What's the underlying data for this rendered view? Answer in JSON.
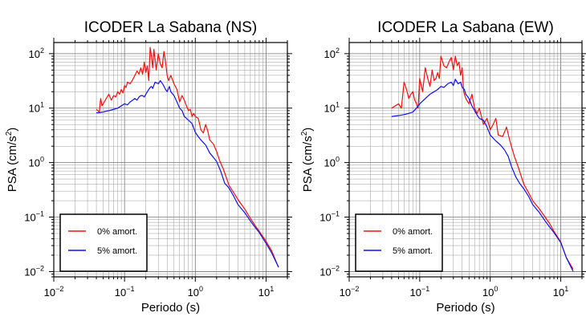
{
  "chart_data": [
    {
      "type": "line",
      "title": "ICODER La Sabana (NS)",
      "xlabel": "Periodo (s)",
      "ylabel_main": "PSA (cm/s",
      "ylabel_sup": "2",
      "ylabel_end": ")",
      "x_scale": "log",
      "y_scale": "log",
      "xlim": [
        0.01,
        20
      ],
      "ylim": [
        0.008,
        160
      ],
      "x_ticks": [
        {
          "value": 0.01,
          "base": "10",
          "exp": "−2"
        },
        {
          "value": 0.1,
          "base": "10",
          "exp": "−1"
        },
        {
          "value": 1,
          "base": "10",
          "exp": "0"
        },
        {
          "value": 10,
          "base": "10",
          "exp": "1"
        }
      ],
      "y_ticks": [
        {
          "value": 0.01,
          "base": "10",
          "exp": "−2"
        },
        {
          "value": 0.1,
          "base": "10",
          "exp": "−1"
        },
        {
          "value": 1,
          "base": "10",
          "exp": "0"
        },
        {
          "value": 10,
          "base": "10",
          "exp": "1"
        },
        {
          "value": 100,
          "base": "10",
          "exp": "2"
        }
      ],
      "grid": true,
      "legend_position": "bottom-left",
      "series": [
        {
          "name": "0% amort.",
          "color": "#ee1111",
          "x": [
            0.04,
            0.044,
            0.046,
            0.048,
            0.05,
            0.055,
            0.06,
            0.065,
            0.07,
            0.075,
            0.08,
            0.085,
            0.09,
            0.095,
            0.1,
            0.105,
            0.11,
            0.12,
            0.13,
            0.14,
            0.15,
            0.16,
            0.17,
            0.18,
            0.19,
            0.2,
            0.21,
            0.22,
            0.23,
            0.24,
            0.25,
            0.26,
            0.28,
            0.3,
            0.32,
            0.34,
            0.36,
            0.38,
            0.4,
            0.42,
            0.45,
            0.5,
            0.55,
            0.6,
            0.65,
            0.7,
            0.75,
            0.8,
            0.85,
            0.9,
            0.95,
            1.0,
            1.1,
            1.2,
            1.3,
            1.4,
            1.5,
            1.6,
            1.8,
            2.0,
            2.2,
            2.5,
            3.0,
            3.5,
            4.0,
            5.0,
            6.0,
            7.0,
            8.0,
            10.0,
            12.0,
            15.0
          ],
          "y": [
            9.5,
            8.5,
            15,
            11,
            12,
            15,
            18,
            14,
            17,
            16,
            20,
            18,
            22,
            19,
            26,
            24,
            30,
            28,
            33,
            40,
            48,
            42,
            55,
            42,
            70,
            45,
            60,
            32,
            130,
            90,
            55,
            120,
            50,
            100,
            65,
            55,
            110,
            70,
            40,
            32,
            40,
            28,
            22,
            13,
            17,
            14,
            11,
            9,
            9.5,
            7,
            8,
            7,
            6.5,
            4,
            3.5,
            5,
            3.8,
            2.6,
            2.2,
            1.6,
            1.1,
            0.75,
            0.38,
            0.28,
            0.21,
            0.14,
            0.095,
            0.07,
            0.055,
            0.036,
            0.024,
            0.012
          ]
        },
        {
          "name": "5% amort.",
          "color": "#1111ee",
          "x": [
            0.04,
            0.045,
            0.05,
            0.055,
            0.06,
            0.07,
            0.08,
            0.09,
            0.1,
            0.11,
            0.12,
            0.13,
            0.14,
            0.15,
            0.16,
            0.17,
            0.18,
            0.19,
            0.2,
            0.21,
            0.22,
            0.23,
            0.24,
            0.25,
            0.27,
            0.3,
            0.32,
            0.35,
            0.38,
            0.4,
            0.43,
            0.45,
            0.5,
            0.55,
            0.6,
            0.65,
            0.7,
            0.75,
            0.8,
            0.9,
            1.0,
            1.1,
            1.2,
            1.4,
            1.6,
            1.8,
            2.0,
            2.3,
            2.6,
            3.0,
            3.5,
            4.0,
            5.0,
            6.0,
            7.0,
            8.0,
            10.0,
            12.0,
            15.0
          ],
          "y": [
            8.2,
            8.3,
            8.5,
            8.8,
            9,
            9.5,
            10,
            11,
            12,
            11.5,
            13,
            14,
            15,
            14,
            16,
            17,
            17,
            16,
            18,
            20,
            22,
            24,
            25,
            23,
            30,
            28,
            32,
            27,
            22,
            20,
            25,
            20,
            17,
            13,
            10,
            9,
            7,
            6.5,
            6,
            5.2,
            3.6,
            3,
            2.6,
            2.1,
            1.5,
            1.25,
            1.05,
            0.68,
            0.42,
            0.34,
            0.24,
            0.17,
            0.12,
            0.085,
            0.065,
            0.052,
            0.033,
            0.022,
            0.012
          ]
        }
      ]
    },
    {
      "type": "line",
      "title": "ICODER La Sabana (EW)",
      "xlabel": "Periodo (s)",
      "ylabel_main": "PSA (cm/s",
      "ylabel_sup": "2",
      "ylabel_end": ")",
      "x_scale": "log",
      "y_scale": "log",
      "xlim": [
        0.01,
        20
      ],
      "ylim": [
        0.008,
        160
      ],
      "x_ticks": [
        {
          "value": 0.01,
          "base": "10",
          "exp": "−2"
        },
        {
          "value": 0.1,
          "base": "10",
          "exp": "−1"
        },
        {
          "value": 1,
          "base": "10",
          "exp": "0"
        },
        {
          "value": 10,
          "base": "10",
          "exp": "1"
        }
      ],
      "y_ticks": [
        {
          "value": 0.01,
          "base": "10",
          "exp": "−2"
        },
        {
          "value": 0.1,
          "base": "10",
          "exp": "−1"
        },
        {
          "value": 1,
          "base": "10",
          "exp": "0"
        },
        {
          "value": 10,
          "base": "10",
          "exp": "1"
        },
        {
          "value": 100,
          "base": "10",
          "exp": "2"
        }
      ],
      "grid": true,
      "legend_position": "bottom-left",
      "series": [
        {
          "name": "0% amort.",
          "color": "#ee1111",
          "x": [
            0.04,
            0.045,
            0.05,
            0.055,
            0.06,
            0.065,
            0.07,
            0.075,
            0.08,
            0.085,
            0.09,
            0.095,
            0.1,
            0.11,
            0.12,
            0.13,
            0.14,
            0.15,
            0.16,
            0.17,
            0.18,
            0.19,
            0.2,
            0.22,
            0.24,
            0.26,
            0.28,
            0.3,
            0.32,
            0.34,
            0.36,
            0.38,
            0.4,
            0.42,
            0.45,
            0.5,
            0.55,
            0.6,
            0.65,
            0.7,
            0.75,
            0.8,
            0.9,
            1.0,
            1.1,
            1.2,
            1.3,
            1.5,
            1.7,
            1.9,
            2.2,
            2.5,
            3.0,
            3.5,
            4.0,
            5.0,
            6.0,
            7.0,
            8.0,
            10.0,
            12.0,
            15.0
          ],
          "y": [
            10,
            11,
            12,
            10,
            30,
            22,
            15,
            18,
            20,
            14,
            12,
            10,
            35,
            20,
            55,
            35,
            25,
            50,
            32,
            35,
            45,
            35,
            90,
            60,
            55,
            70,
            85,
            50,
            90,
            60,
            70,
            40,
            55,
            20,
            15,
            12,
            18,
            10,
            8,
            10,
            7,
            5,
            6.5,
            4,
            5,
            6.5,
            3.2,
            3,
            4.5,
            2.5,
            1.3,
            0.82,
            0.4,
            0.28,
            0.2,
            0.14,
            0.1,
            0.075,
            0.055,
            0.035,
            0.018,
            0.011
          ]
        },
        {
          "name": "5% amort.",
          "color": "#1111ee",
          "x": [
            0.04,
            0.05,
            0.06,
            0.07,
            0.08,
            0.09,
            0.1,
            0.12,
            0.14,
            0.16,
            0.18,
            0.2,
            0.22,
            0.25,
            0.28,
            0.3,
            0.32,
            0.35,
            0.38,
            0.4,
            0.43,
            0.45,
            0.5,
            0.55,
            0.6,
            0.65,
            0.7,
            0.8,
            0.9,
            1.0,
            1.2,
            1.4,
            1.6,
            1.8,
            2.0,
            2.3,
            2.6,
            3.0,
            3.5,
            4.0,
            5.0,
            6.0,
            7.0,
            8.0,
            10.0,
            12.0,
            15.0
          ],
          "y": [
            7,
            7.3,
            7.6,
            8,
            8.5,
            10,
            12,
            15,
            18,
            20,
            22,
            25,
            24,
            28,
            30,
            26,
            34,
            28,
            30,
            24,
            22,
            18,
            15,
            11,
            9,
            7.5,
            6.5,
            6,
            4.5,
            3.2,
            2.5,
            2.1,
            1.7,
            1.3,
            0.85,
            0.55,
            0.42,
            0.33,
            0.24,
            0.17,
            0.12,
            0.085,
            0.065,
            0.052,
            0.034,
            0.018,
            0.01
          ]
        }
      ]
    }
  ]
}
